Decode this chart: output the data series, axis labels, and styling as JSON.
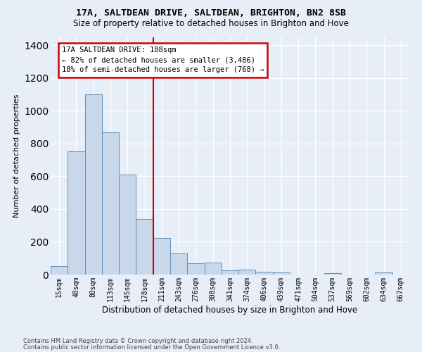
{
  "title1": "17A, SALTDEAN DRIVE, SALTDEAN, BRIGHTON, BN2 8SB",
  "title2": "Size of property relative to detached houses in Brighton and Hove",
  "xlabel": "Distribution of detached houses by size in Brighton and Hove",
  "ylabel": "Number of detached properties",
  "categories": [
    "15sqm",
    "48sqm",
    "80sqm",
    "113sqm",
    "145sqm",
    "178sqm",
    "211sqm",
    "243sqm",
    "276sqm",
    "308sqm",
    "341sqm",
    "374sqm",
    "406sqm",
    "439sqm",
    "471sqm",
    "504sqm",
    "537sqm",
    "569sqm",
    "602sqm",
    "634sqm",
    "667sqm"
  ],
  "values": [
    50,
    750,
    1100,
    870,
    610,
    340,
    225,
    130,
    68,
    75,
    25,
    28,
    18,
    12,
    0,
    0,
    10,
    0,
    0,
    12,
    0
  ],
  "bar_color": "#c8d8ea",
  "bar_edge_color": "#6090b8",
  "vline_position": 5.5,
  "vline_color": "#cc0000",
  "annotation_line1": "17A SALTDEAN DRIVE: 188sqm",
  "annotation_line2": "← 82% of detached houses are smaller (3,486)",
  "annotation_line3": "18% of semi-detached houses are larger (768) →",
  "annotation_box_facecolor": "#ffffff",
  "annotation_box_edgecolor": "#cc0000",
  "ylim_max": 1450,
  "yticks": [
    0,
    200,
    400,
    600,
    800,
    1000,
    1200,
    1400
  ],
  "footnote1": "Contains HM Land Registry data © Crown copyright and database right 2024.",
  "footnote2": "Contains public sector information licensed under the Open Government Licence v3.0.",
  "fig_bg_color": "#e8eef8",
  "plot_bg_color": "#e8eef8",
  "title1_fontsize": 9.5,
  "title2_fontsize": 8.5,
  "ylabel_fontsize": 8.0,
  "xlabel_fontsize": 8.5,
  "tick_fontsize": 7.0,
  "annot_fontsize": 7.5,
  "footnote_fontsize": 6.0
}
